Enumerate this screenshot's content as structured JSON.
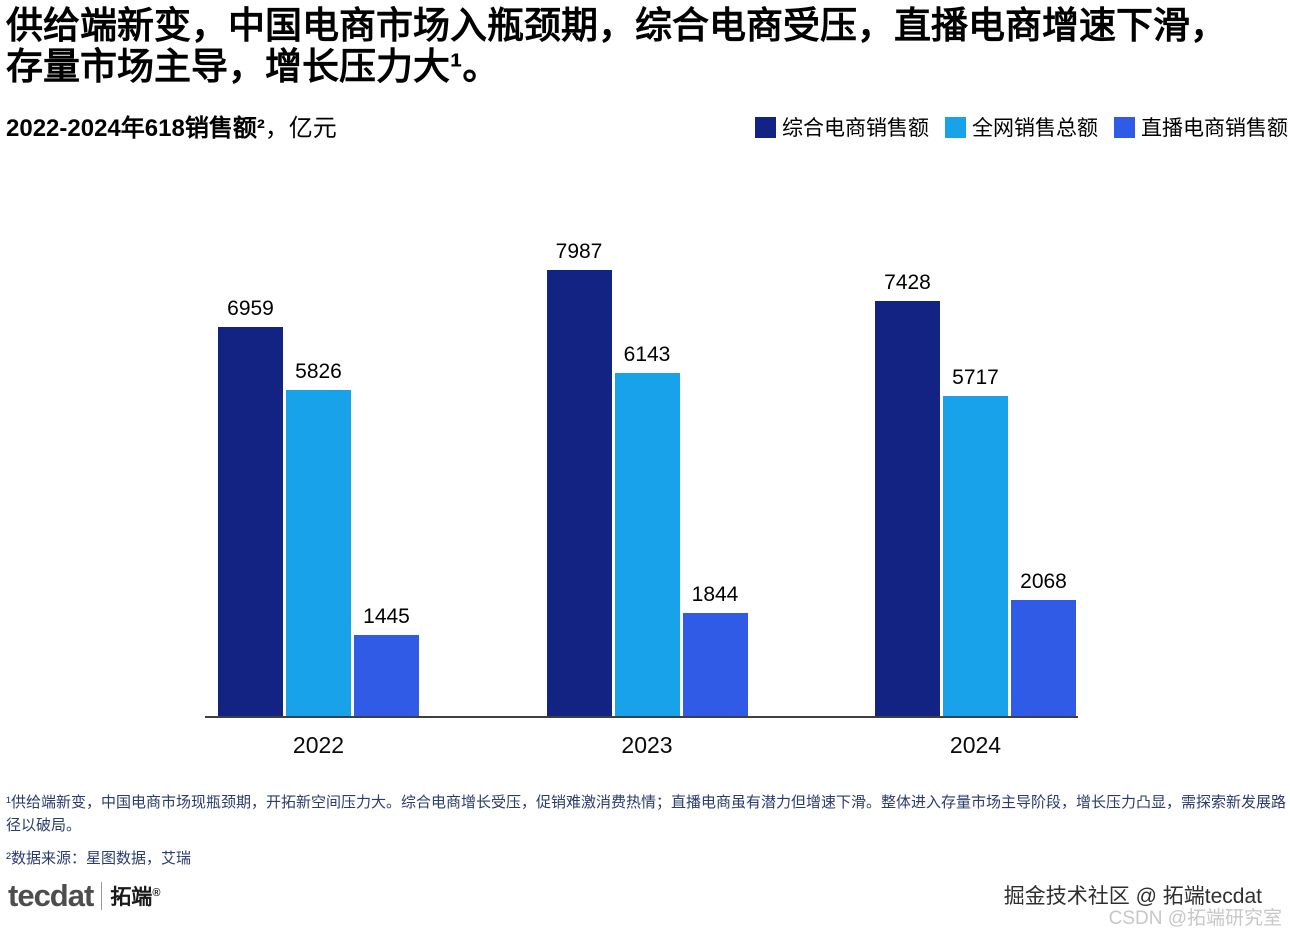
{
  "header": {
    "title": "供给端新变，中国电商市场入瓶颈期，综合电商受压，直播电商增速下滑，存量市场主导，增长压力大¹。"
  },
  "chart_header": {
    "subtitle_bold": "2022-2024年618销售额²",
    "subtitle_unit": "，亿元"
  },
  "legend": {
    "items": [
      {
        "label": "综合电商销售额",
        "color": "#122384"
      },
      {
        "label": "全网销售总额",
        "color": "#18a2e9"
      },
      {
        "label": "直播电商销售额",
        "color": "#2f5be6"
      }
    ]
  },
  "chart_data": {
    "type": "bar",
    "title": "2022-2024年618销售额，亿元",
    "categories": [
      "2022",
      "2023",
      "2024"
    ],
    "series": [
      {
        "name": "综合电商销售额",
        "color": "#122384",
        "values": [
          6959,
          7987,
          7428
        ]
      },
      {
        "name": "全网销售总额",
        "color": "#18a2e9",
        "values": [
          5826,
          6143,
          5717
        ]
      },
      {
        "name": "直播电商销售额",
        "color": "#2f5be6",
        "values": [
          1445,
          1844,
          2068
        ]
      }
    ],
    "ylabel": "亿元",
    "ylim": [
      0,
      8800
    ],
    "grid": false,
    "data_labels": true,
    "legend_position": "top-right"
  },
  "footnotes": {
    "note1": "¹供给端新变，中国电商市场现瓶颈期，开拓新空间压力大。综合电商增长受压，促销难激消费热情；直播电商虽有潜力但增速下滑。整体进入存量市场主导阶段，增长压力凸显，需探索新发展路径以破局。",
    "note2": "²数据来源：星图数据，艾瑞"
  },
  "footer": {
    "logo_text": "tecdat",
    "logo_cn": "拓端",
    "logo_reg": "®",
    "community_text": "掘金技术社区 @ 拓端tecdat",
    "watermark": "CSDN @拓端研究室"
  }
}
